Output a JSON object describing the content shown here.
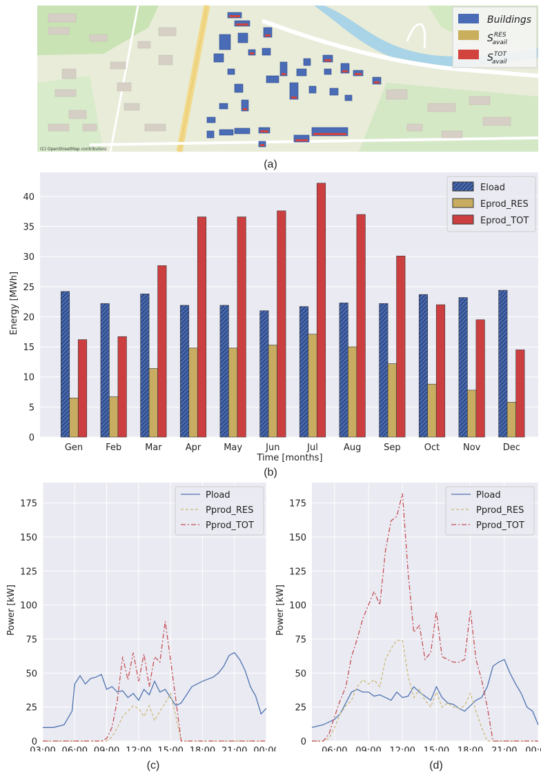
{
  "map": {
    "attribution": "(C) OpenStreetMap contributors",
    "legend": [
      {
        "label": "Buildings",
        "color": "#4a6bb5"
      },
      {
        "label": "S",
        "sup": "RES",
        "sub": "avail",
        "color": "#c9ae5c"
      },
      {
        "label": "S",
        "sup": "TOT",
        "sub": "avail",
        "color": "#d2433d"
      }
    ],
    "caption": "(a)"
  },
  "colors": {
    "eload": "#4769b2",
    "eprod_res": "#c7ac61",
    "eprod_tot": "#cc3f40",
    "pload": "#4c72b0",
    "pprod_res": "#ccb974",
    "pprod_tot": "#c44e52",
    "plot_bg": "#eaeaf2"
  },
  "chart_data": [
    {
      "type": "bar",
      "categories": [
        "Gen",
        "Feb",
        "Mar",
        "Apr",
        "May",
        "Jun",
        "Jul",
        "Aug",
        "Sep",
        "Oct",
        "Nov",
        "Dec"
      ],
      "series": [
        {
          "name": "Eload",
          "values": [
            24.2,
            22.2,
            23.8,
            21.9,
            21.9,
            21.0,
            21.7,
            22.3,
            22.2,
            23.7,
            23.2,
            24.4
          ]
        },
        {
          "name": "Eprod_RES",
          "values": [
            6.5,
            6.7,
            11.4,
            14.8,
            14.8,
            15.3,
            17.1,
            15.0,
            12.2,
            8.8,
            7.8,
            5.8
          ]
        },
        {
          "name": "Eprod_TOT",
          "values": [
            16.2,
            16.7,
            28.5,
            36.6,
            36.6,
            37.6,
            42.2,
            37.0,
            30.1,
            22.0,
            19.5,
            14.5
          ]
        }
      ],
      "xlabel": "Time [months]",
      "ylabel": "Energy [MWh]",
      "ylim": [
        0,
        44
      ],
      "yticks": [
        "0",
        "5",
        "10",
        "15",
        "20",
        "25",
        "30",
        "35",
        "40"
      ],
      "legend_position": "top-right",
      "grid": true,
      "caption": "(b)"
    },
    {
      "type": "line",
      "x_start": "03:00",
      "x_end": "00:00",
      "xticks": [
        "03:00",
        "06:00",
        "09:00",
        "12:00",
        "15:00",
        "18:00",
        "21:00",
        "00:00"
      ],
      "x": [
        "03:00",
        "04:00",
        "05:00",
        "05:45",
        "06:00",
        "06:30",
        "07:00",
        "07:30",
        "08:00",
        "08:30",
        "09:00",
        "09:30",
        "10:00",
        "10:30",
        "11:00",
        "11:30",
        "12:00",
        "12:30",
        "13:00",
        "13:30",
        "14:00",
        "14:30",
        "15:00",
        "15:30",
        "16:00",
        "17:00",
        "18:00",
        "19:00",
        "19:30",
        "20:00",
        "20:30",
        "21:00",
        "21:30",
        "22:00",
        "22:30",
        "23:00",
        "23:30",
        "00:00"
      ],
      "series": [
        {
          "name": "Pload",
          "values": [
            10,
            10,
            12,
            22,
            42,
            48,
            42,
            46,
            47,
            49,
            38,
            40,
            36,
            37,
            32,
            35,
            30,
            38,
            34,
            44,
            36,
            38,
            32,
            26,
            28,
            40,
            44,
            47,
            50,
            55,
            63,
            65,
            60,
            52,
            40,
            33,
            20,
            24
          ]
        },
        {
          "name": "Pprod_RES",
          "values": [
            0,
            0,
            0,
            0,
            0,
            0,
            0,
            0,
            0,
            0,
            0,
            3,
            10,
            18,
            22,
            26,
            24,
            18,
            26,
            15,
            22,
            28,
            35,
            18,
            0,
            0,
            0,
            0,
            0,
            0,
            0,
            0,
            0,
            0,
            0,
            0,
            0,
            0
          ]
        },
        {
          "name": "Pprod_TOT",
          "values": [
            0,
            0,
            0,
            0,
            0,
            0,
            0,
            0,
            0,
            0,
            2,
            10,
            30,
            62,
            45,
            65,
            44,
            64,
            40,
            62,
            58,
            88,
            60,
            30,
            0,
            0,
            0,
            0,
            0,
            0,
            0,
            0,
            0,
            0,
            0,
            0,
            0,
            0
          ]
        }
      ],
      "ylabel": "Power [kW]",
      "ylim": [
        0,
        190
      ],
      "yticks": [
        "0",
        "25",
        "50",
        "75",
        "100",
        "125",
        "150",
        "175"
      ],
      "legend_position": "top-right",
      "grid": true,
      "caption": "(c)"
    },
    {
      "type": "line",
      "x_start": "04:00",
      "x_end": "00:00",
      "xticks": [
        "06:00",
        "09:00",
        "12:00",
        "15:00",
        "18:00",
        "21:00",
        "00:00"
      ],
      "x": [
        "04:00",
        "05:00",
        "05:30",
        "06:00",
        "06:30",
        "07:00",
        "07:30",
        "08:00",
        "08:30",
        "09:00",
        "09:30",
        "10:00",
        "10:30",
        "11:00",
        "11:30",
        "12:00",
        "12:30",
        "13:00",
        "13:30",
        "14:00",
        "14:30",
        "15:00",
        "15:30",
        "16:00",
        "16:30",
        "17:00",
        "17:30",
        "18:00",
        "18:30",
        "19:00",
        "19:30",
        "20:00",
        "20:30",
        "21:00",
        "21:30",
        "22:00",
        "22:30",
        "23:00",
        "23:30",
        "00:00"
      ],
      "series": [
        {
          "name": "Pload",
          "values": [
            10,
            12,
            14,
            16,
            20,
            28,
            36,
            38,
            36,
            36,
            33,
            34,
            32,
            30,
            36,
            32,
            33,
            40,
            36,
            33,
            30,
            40,
            32,
            28,
            27,
            24,
            22,
            26,
            30,
            32,
            40,
            55,
            58,
            60,
            50,
            42,
            35,
            25,
            22,
            12
          ]
        },
        {
          "name": "Pprod_RES",
          "values": [
            0,
            0,
            2,
            10,
            20,
            26,
            30,
            40,
            45,
            42,
            45,
            40,
            60,
            68,
            74,
            74,
            48,
            32,
            38,
            30,
            25,
            36,
            25,
            28,
            25,
            24,
            26,
            35,
            22,
            10,
            0,
            0,
            0,
            0,
            0,
            0,
            0,
            0,
            0,
            0
          ]
        },
        {
          "name": "Pprod_TOT",
          "values": [
            0,
            0,
            5,
            18,
            30,
            40,
            62,
            75,
            90,
            100,
            110,
            100,
            140,
            162,
            165,
            182,
            124,
            80,
            85,
            60,
            65,
            95,
            62,
            60,
            58,
            58,
            60,
            96,
            60,
            45,
            25,
            0,
            0,
            0,
            0,
            0,
            0,
            0,
            0,
            0
          ]
        }
      ],
      "ylabel": "Power [kW]",
      "ylim": [
        0,
        190
      ],
      "yticks": [
        "0",
        "25",
        "50",
        "75",
        "100",
        "125",
        "150",
        "175"
      ],
      "legend_position": "top-right",
      "grid": true,
      "caption": "(d)"
    }
  ]
}
